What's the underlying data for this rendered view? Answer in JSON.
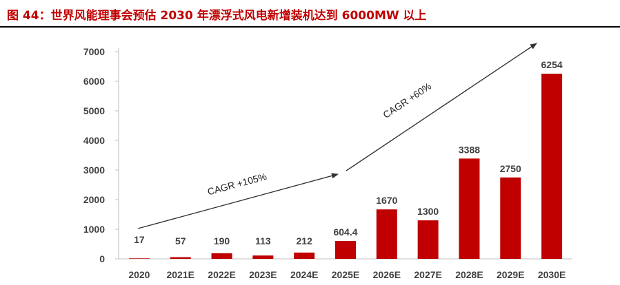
{
  "title": "图 44：世界风能理事会预估 2030 年漂浮式风电新增装机达到 6000MW 以上",
  "colors": {
    "title": "#c00000",
    "bar": "#c00000",
    "text": "#404040",
    "arrow": "#333333"
  },
  "chart_data": {
    "type": "bar",
    "title": "",
    "xlabel": "",
    "ylabel": "",
    "categories": [
      "2020",
      "2021E",
      "2022E",
      "2023E",
      "2024E",
      "2025E",
      "2026E",
      "2027E",
      "2028E",
      "2029E",
      "2030E"
    ],
    "values": [
      17,
      57,
      190,
      113,
      212,
      604.4,
      1670,
      1300,
      3388,
      2750,
      6254
    ],
    "value_labels": [
      "17",
      "57",
      "190",
      "113",
      "212",
      "604.4",
      "1670",
      "1300",
      "3388",
      "2750",
      "6254"
    ],
    "ylim": [
      0,
      7000
    ],
    "yticks": [
      0,
      1000,
      2000,
      3000,
      4000,
      5000,
      6000,
      7000
    ],
    "grid": false,
    "legend": "none",
    "annotations": [
      {
        "text": "CAGR +105%",
        "from_category": "2020",
        "to_category": "2025E"
      },
      {
        "text": "CAGR +60%",
        "from_category": "2025E",
        "to_category": "2030E"
      }
    ]
  }
}
